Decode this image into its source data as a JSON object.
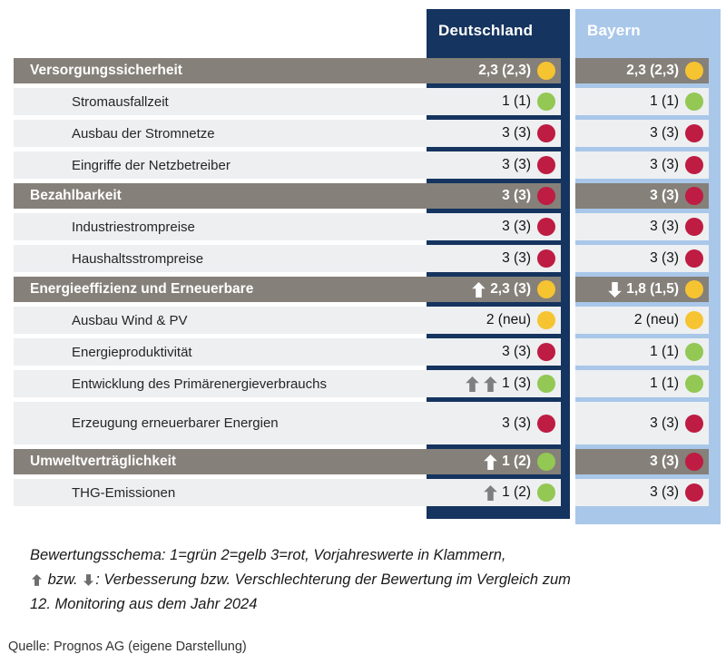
{
  "chart_data": {
    "type": "table",
    "columns": [
      {
        "id": "de",
        "label": "Deutschland"
      },
      {
        "id": "by",
        "label": "Bayern"
      }
    ],
    "rows": [
      {
        "type": "category",
        "label": "Versorgungssicherheit",
        "de": {
          "value": "2,3 (2,3)",
          "dot": "yellow",
          "arrows": []
        },
        "by": {
          "value": "2,3 (2,3)",
          "dot": "yellow",
          "arrows": []
        }
      },
      {
        "type": "sub",
        "label": "Stromausfallzeit",
        "de": {
          "value": "1 (1)",
          "dot": "green",
          "arrows": []
        },
        "by": {
          "value": "1 (1)",
          "dot": "green",
          "arrows": []
        }
      },
      {
        "type": "sub",
        "label": "Ausbau der Stromnetze",
        "de": {
          "value": "3 (3)",
          "dot": "red",
          "arrows": []
        },
        "by": {
          "value": "3 (3)",
          "dot": "red",
          "arrows": []
        }
      },
      {
        "type": "sub",
        "label": "Eingriffe der Netzbetreiber",
        "de": {
          "value": "3 (3)",
          "dot": "red",
          "arrows": []
        },
        "by": {
          "value": "3 (3)",
          "dot": "red",
          "arrows": []
        }
      },
      {
        "type": "category",
        "label": "Bezahlbarkeit",
        "de": {
          "value": "3 (3)",
          "dot": "red",
          "arrows": []
        },
        "by": {
          "value": "3 (3)",
          "dot": "red",
          "arrows": []
        }
      },
      {
        "type": "sub",
        "label": "Industriestrompreise",
        "de": {
          "value": "3 (3)",
          "dot": "red",
          "arrows": []
        },
        "by": {
          "value": "3 (3)",
          "dot": "red",
          "arrows": []
        }
      },
      {
        "type": "sub",
        "label": "Haushaltsstrompreise",
        "de": {
          "value": "3 (3)",
          "dot": "red",
          "arrows": []
        },
        "by": {
          "value": "3 (3)",
          "dot": "red",
          "arrows": []
        }
      },
      {
        "type": "category",
        "label": "Energieeffizienz und Erneuerbare",
        "de": {
          "value": "2,3 (3)",
          "dot": "yellow",
          "arrows": [
            {
              "dir": "up",
              "color": "white"
            }
          ]
        },
        "by": {
          "value": "1,8 (1,5)",
          "dot": "yellow",
          "arrows": [
            {
              "dir": "down",
              "color": "white"
            }
          ]
        }
      },
      {
        "type": "sub",
        "label": "Ausbau Wind & PV",
        "de": {
          "value": "2 (neu)",
          "dot": "yellow",
          "arrows": []
        },
        "by": {
          "value": "2 (neu)",
          "dot": "yellow",
          "arrows": []
        }
      },
      {
        "type": "sub",
        "label": "Energieproduktivität",
        "de": {
          "value": "3 (3)",
          "dot": "red",
          "arrows": []
        },
        "by": {
          "value": "1 (1)",
          "dot": "green",
          "arrows": []
        }
      },
      {
        "type": "sub",
        "label": "Entwicklung des Primärenergieverbrauchs",
        "de": {
          "value": "1 (3)",
          "dot": "green",
          "arrows": [
            {
              "dir": "up",
              "color": "gray"
            },
            {
              "dir": "up",
              "color": "gray"
            }
          ]
        },
        "by": {
          "value": "1 (1)",
          "dot": "green",
          "arrows": []
        }
      },
      {
        "type": "sub",
        "tall": true,
        "label": "Erzeugung erneuerbarer Energien",
        "de": {
          "value": "3 (3)",
          "dot": "red",
          "arrows": []
        },
        "by": {
          "value": "3 (3)",
          "dot": "red",
          "arrows": []
        }
      },
      {
        "type": "category",
        "label": "Umweltverträglichkeit",
        "de": {
          "value": "1 (2)",
          "dot": "green",
          "arrows": [
            {
              "dir": "up",
              "color": "white"
            }
          ]
        },
        "by": {
          "value": "3 (3)",
          "dot": "red",
          "arrows": []
        }
      },
      {
        "type": "sub",
        "label": "THG-Emissionen",
        "de": {
          "value": "1 (2)",
          "dot": "green",
          "arrows": [
            {
              "dir": "up",
              "color": "gray"
            }
          ]
        },
        "by": {
          "value": "3 (3)",
          "dot": "red",
          "arrows": []
        }
      }
    ]
  },
  "legend": {
    "line1": "Bewertungsschema: 1=grün 2=gelb 3=rot, Vorjahreswerte in Klammern,",
    "line2_mid": " bzw. ",
    "line2_rest": ": Verbesserung bzw. Verschlechterung der Bewertung im Vergleich zum",
    "line3": "12. Monitoring aus dem Jahr 2024"
  },
  "source": "Quelle: Prognos AG (eigene Darstellung)",
  "icons": {
    "up_arrow": "⬆",
    "down_arrow": "⬇"
  },
  "colors": {
    "green": "#92c853",
    "yellow": "#f6c431",
    "red": "#be1c42",
    "arrow_white": "#ffffff",
    "arrow_gray": "#7f7f7f",
    "deutschland_column": "#15345f",
    "bayern_column": "#a9c7e9",
    "category_bar": "#858079",
    "row_background": "#edeff1"
  }
}
